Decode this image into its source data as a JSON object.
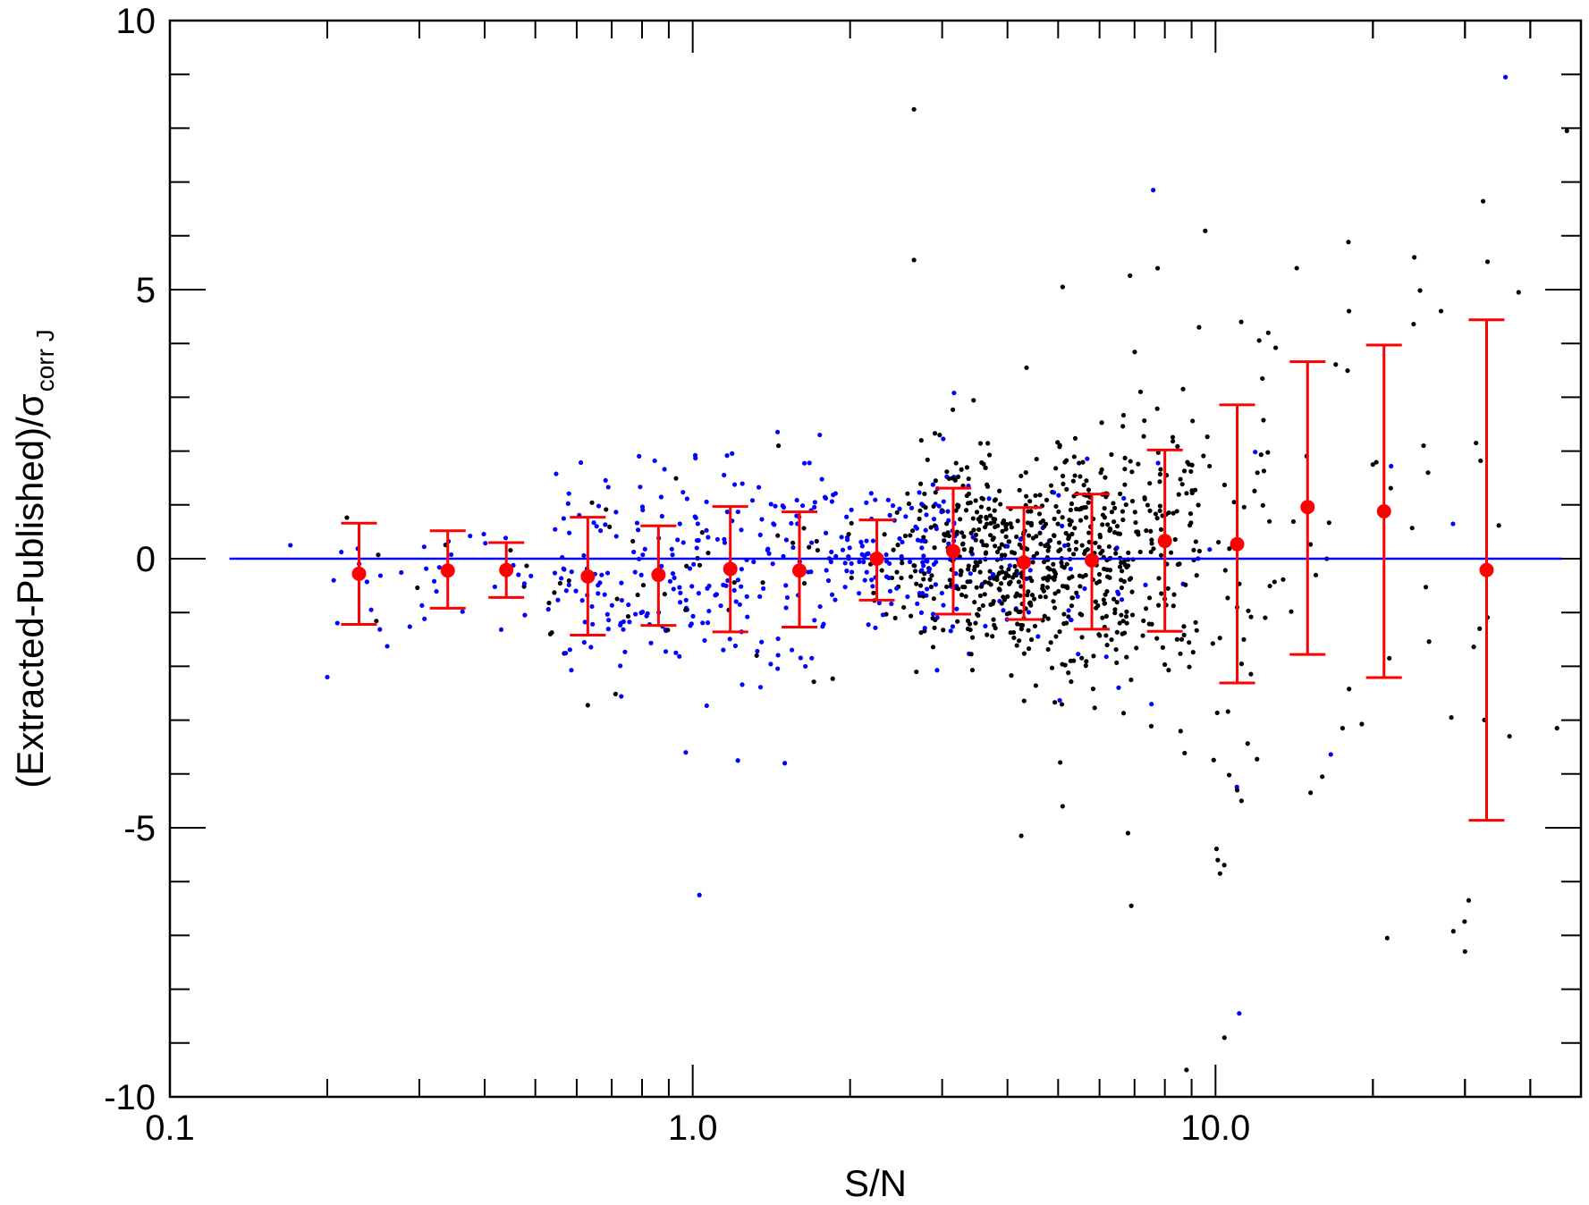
{
  "chart_data": {
    "type": "scatter",
    "x_scale": "log",
    "xlim": [
      0.1,
      50
    ],
    "ylim": [
      -10,
      10
    ],
    "xlabel": "S/N",
    "ylabel": "(Extracted-Published)/σ",
    "ylabel_subscript": "corr J",
    "x_tick_labels": [
      "0.1",
      "1.0",
      "10.0"
    ],
    "y_tick_labels": [
      "-10",
      "-5",
      "0",
      "5",
      "10"
    ],
    "grid": false,
    "colors": {
      "low_sn_points": "#0000ff",
      "high_sn_points": "#000000",
      "binned_mean": "#ff0000",
      "zero_line": "#0000ff"
    },
    "zero_line": {
      "y": 0,
      "x_range": [
        0.13,
        46
      ]
    },
    "binned_means": [
      {
        "x": 0.23,
        "y": -0.28,
        "err_low": -1.22,
        "err_high": 0.66
      },
      {
        "x": 0.34,
        "y": -0.22,
        "err_low": -0.92,
        "err_high": 0.52
      },
      {
        "x": 0.44,
        "y": -0.21,
        "err_low": -0.72,
        "err_high": 0.3
      },
      {
        "x": 0.63,
        "y": -0.33,
        "err_low": -1.42,
        "err_high": 0.77
      },
      {
        "x": 0.86,
        "y": -0.3,
        "err_low": -1.24,
        "err_high": 0.61
      },
      {
        "x": 1.18,
        "y": -0.19,
        "err_low": -1.36,
        "err_high": 0.97
      },
      {
        "x": 1.6,
        "y": -0.22,
        "err_low": -1.27,
        "err_high": 0.87
      },
      {
        "x": 2.25,
        "y": 0.0,
        "err_low": -0.77,
        "err_high": 0.72
      },
      {
        "x": 3.15,
        "y": 0.14,
        "err_low": -1.03,
        "err_high": 1.31
      },
      {
        "x": 4.3,
        "y": -0.07,
        "err_low": -1.13,
        "err_high": 0.95
      },
      {
        "x": 5.8,
        "y": -0.03,
        "err_low": -1.31,
        "err_high": 1.2
      },
      {
        "x": 8.0,
        "y": 0.33,
        "err_low": -1.35,
        "err_high": 2.02
      },
      {
        "x": 11.0,
        "y": 0.27,
        "err_low": -2.31,
        "err_high": 2.86
      },
      {
        "x": 15.0,
        "y": 0.96,
        "err_low": -1.78,
        "err_high": 3.66
      },
      {
        "x": 21.0,
        "y": 0.88,
        "err_low": -2.21,
        "err_high": 3.97
      },
      {
        "x": 33.0,
        "y": -0.21,
        "err_low": -4.86,
        "err_high": 4.44
      }
    ],
    "outliers_high_sn": [
      {
        "x": 2.65,
        "y": 8.35
      },
      {
        "x": 2.65,
        "y": 5.55
      },
      {
        "x": 5.1,
        "y": 5.05
      },
      {
        "x": 14.3,
        "y": 5.4
      },
      {
        "x": 24.0,
        "y": 5.6
      },
      {
        "x": 38.0,
        "y": 4.95
      },
      {
        "x": 27.0,
        "y": 4.6
      },
      {
        "x": 18.0,
        "y": 4.6
      },
      {
        "x": 11.2,
        "y": 4.4
      },
      {
        "x": 9.3,
        "y": 4.3
      },
      {
        "x": 4.35,
        "y": 3.55
      },
      {
        "x": 4.25,
        "y": -5.15
      },
      {
        "x": 5.1,
        "y": -4.6
      },
      {
        "x": 6.8,
        "y": -5.1
      },
      {
        "x": 6.9,
        "y": -6.45
      },
      {
        "x": 10.1,
        "y": -5.6
      },
      {
        "x": 10.2,
        "y": -5.85
      },
      {
        "x": 10.4,
        "y": -8.9
      },
      {
        "x": 8.8,
        "y": -9.5
      },
      {
        "x": 11.0,
        "y": -4.3
      },
      {
        "x": 15.2,
        "y": -4.35
      },
      {
        "x": 16.0,
        "y": -4.05
      },
      {
        "x": 21.3,
        "y": -7.05
      },
      {
        "x": 30.5,
        "y": -6.35
      },
      {
        "x": 30.0,
        "y": -7.3
      },
      {
        "x": 32.0,
        "y": -1.3
      },
      {
        "x": 36.5,
        "y": -3.3
      },
      {
        "x": 45.0,
        "y": -3.15
      },
      {
        "x": 47.0,
        "y": 7.95
      },
      {
        "x": 17.5,
        "y": -3.15
      },
      {
        "x": 25.5,
        "y": 1.6
      },
      {
        "x": 25.0,
        "y": 2.1
      },
      {
        "x": 31.5,
        "y": 2.15
      },
      {
        "x": 20.0,
        "y": 1.75
      },
      {
        "x": 21.5,
        "y": -1.85
      }
    ],
    "outliers_low_sn": [
      {
        "x": 1.03,
        "y": -6.25
      },
      {
        "x": 11.1,
        "y": -8.45
      },
      {
        "x": 7.6,
        "y": 6.85
      },
      {
        "x": 0.2,
        "y": -2.2
      },
      {
        "x": 1.75,
        "y": 2.3
      },
      {
        "x": 0.97,
        "y": -3.6
      },
      {
        "x": 1.22,
        "y": -3.75
      },
      {
        "x": 1.5,
        "y": -3.8
      },
      {
        "x": 0.17,
        "y": 0.25
      }
    ]
  }
}
